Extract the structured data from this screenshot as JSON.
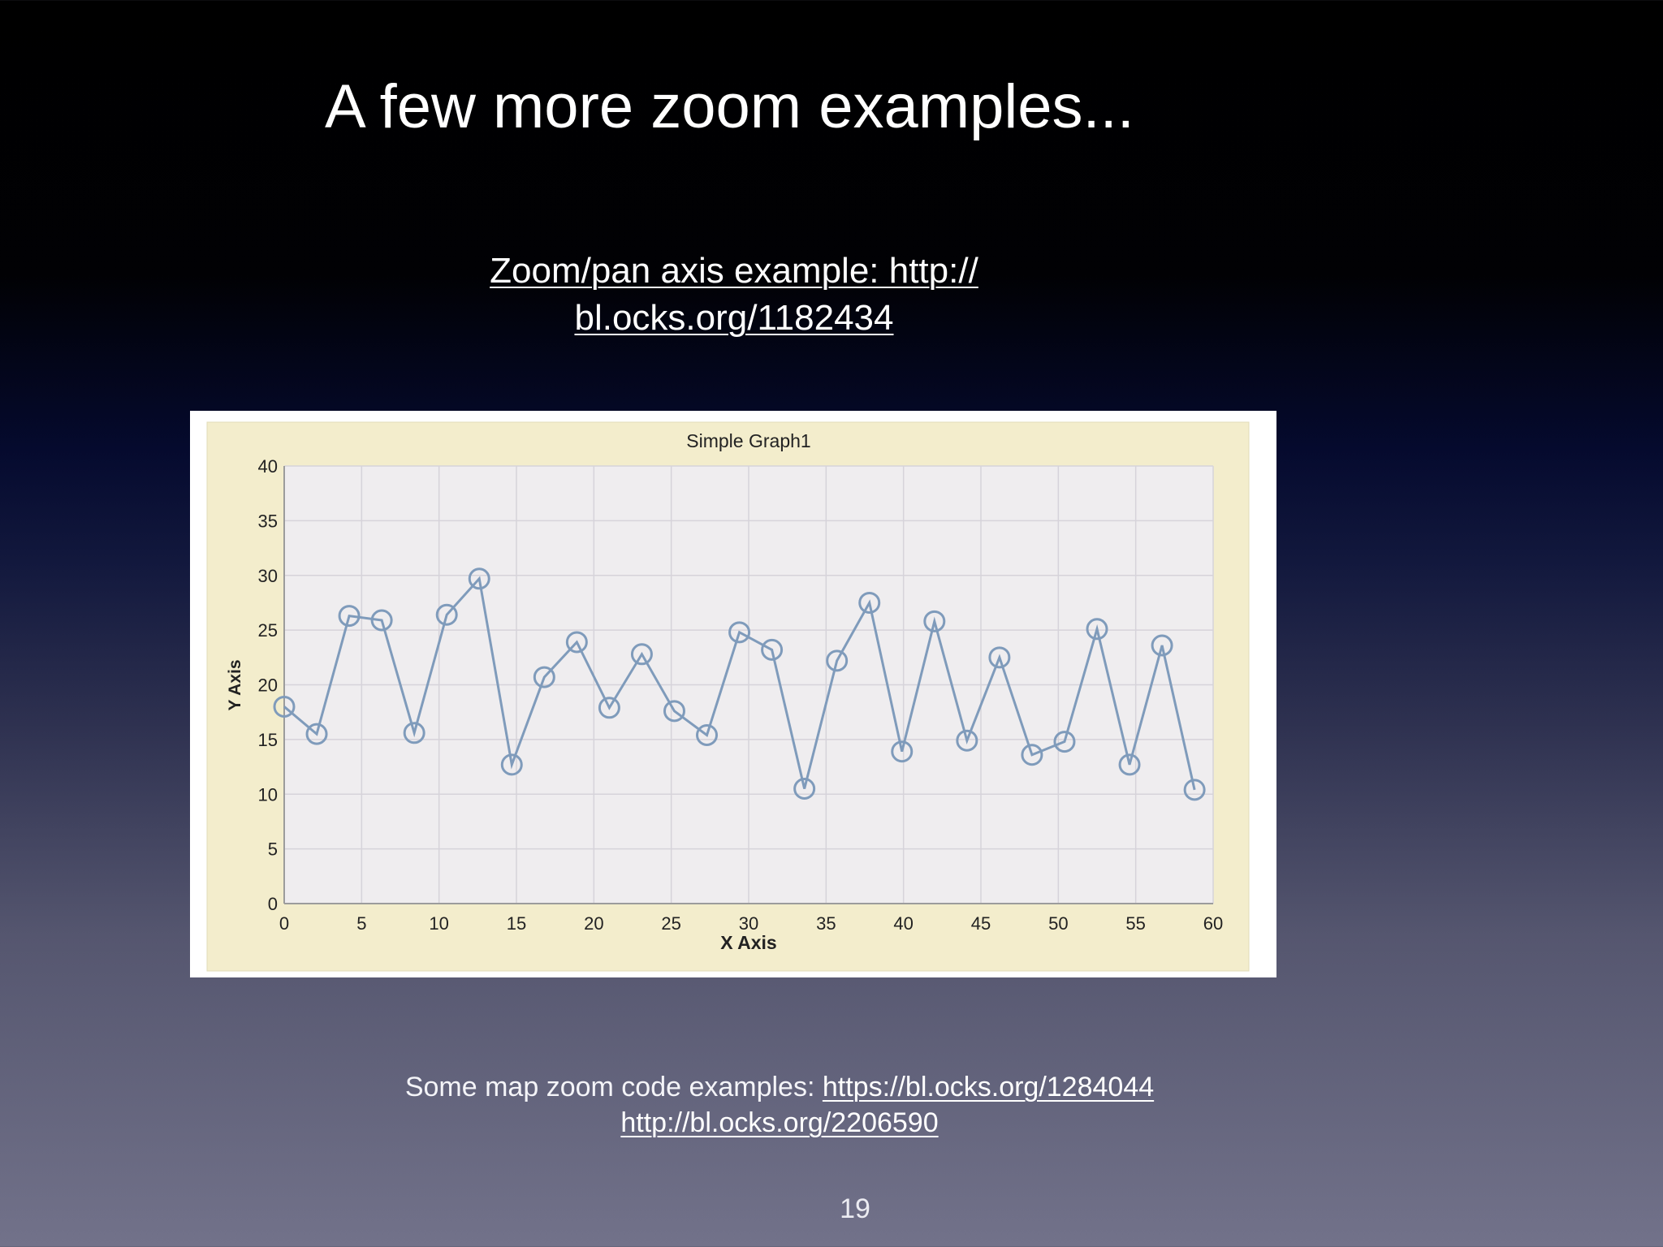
{
  "slide": {
    "title": "A few more zoom examples...",
    "link1_line1": "Zoom/pan axis example: http://",
    "link1_line2": "bl.ocks.org/1182434",
    "footer_text": "Some map zoom code examples: ",
    "footer_link1": "https://bl.ocks.org/1284044",
    "footer_link2": "http://bl.ocks.org/2206590",
    "page_number": "19"
  },
  "chart_data": {
    "type": "line",
    "title": "Simple Graph1",
    "xlabel": "X Axis",
    "ylabel": "Y Axis",
    "xlim": [
      0,
      60
    ],
    "ylim": [
      0,
      40
    ],
    "xticks": [
      0,
      5,
      10,
      15,
      20,
      25,
      30,
      35,
      40,
      45,
      50,
      55,
      60
    ],
    "yticks": [
      0,
      5,
      10,
      15,
      20,
      25,
      30,
      35,
      40
    ],
    "grid": true,
    "legend": "none",
    "colors": {
      "line": "#7f9bbb",
      "plot_bg": "#efedef",
      "frame_bg": "#f3edcc",
      "grid": "#d6d3da"
    },
    "series": [
      {
        "x": [
          0,
          2.1,
          4.2,
          6.3,
          8.4,
          10.5,
          12.6,
          14.7,
          16.8,
          18.9,
          21,
          23.1,
          25.2,
          27.3,
          29.4,
          31.5,
          33.6,
          35.7,
          37.8,
          39.9,
          42,
          44.1,
          46.2,
          48.3,
          50.4,
          52.5,
          54.6,
          56.7,
          58.8
        ],
        "y": [
          18,
          15.5,
          26.3,
          25.9,
          15.6,
          26.4,
          29.7,
          12.7,
          20.7,
          23.9,
          17.9,
          22.8,
          17.6,
          15.4,
          24.8,
          23.2,
          10.5,
          22.2,
          27.5,
          13.9,
          25.8,
          14.9,
          22.5,
          13.6,
          14.8,
          25.1,
          12.7,
          23.6,
          10.4
        ]
      }
    ]
  }
}
